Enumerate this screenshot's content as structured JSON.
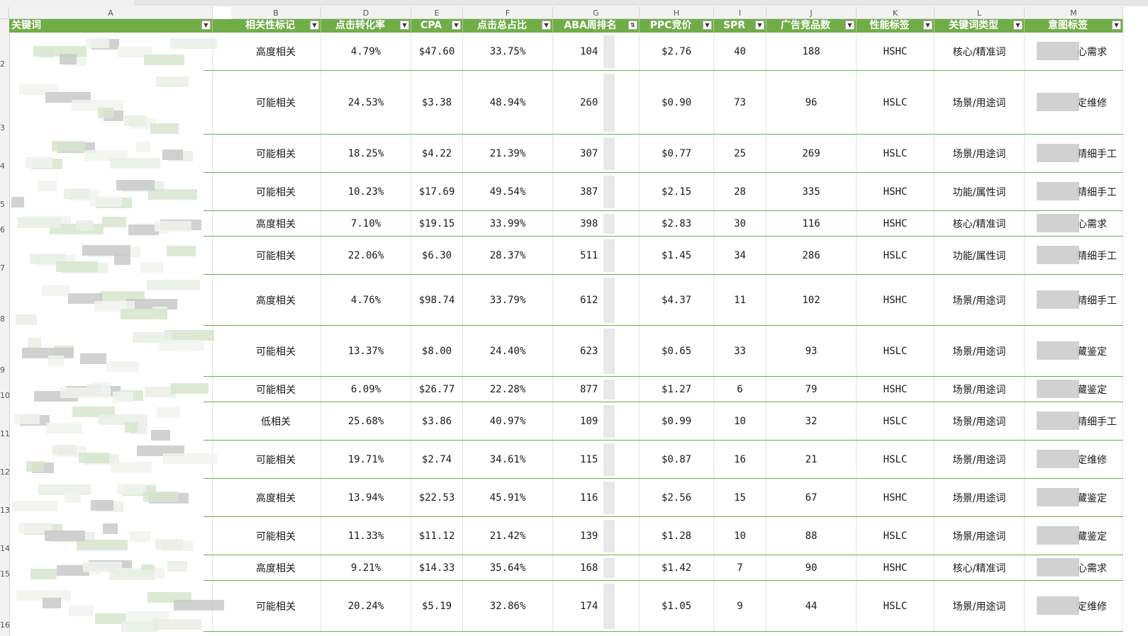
{
  "columns": [
    {
      "letter": "A",
      "header": "关键词"
    },
    {
      "letter": "B",
      "header": "相关性标记"
    },
    {
      "letter": "D",
      "header": "点击转化率"
    },
    {
      "letter": "E",
      "header": "CPA"
    },
    {
      "letter": "F",
      "header": "点击总占比"
    },
    {
      "letter": "G",
      "header": "ABA周排名"
    },
    {
      "letter": "H",
      "header": "PPC竞价"
    },
    {
      "letter": "I",
      "header": "SPR"
    },
    {
      "letter": "J",
      "header": "广告竞品数"
    },
    {
      "letter": "K",
      "header": "性能标签"
    },
    {
      "letter": "L",
      "header": "关键词类型"
    },
    {
      "letter": "M",
      "header": "意图标签"
    }
  ],
  "row_numbers": [
    "2",
    "3",
    "4",
    "5",
    "6",
    "7",
    "8",
    "9",
    "10",
    "11",
    "12",
    "13",
    "14",
    "15",
    "16"
  ],
  "rows": [
    {
      "relevance": "高度相关",
      "ctr": "4.79%",
      "cpa": "$47.60",
      "share": "33.75%",
      "aba": "104",
      "ppc": "$2.76",
      "spr": "40",
      "ads": "188",
      "perf": "HSHC",
      "type": "核心/精准词",
      "intent": "心需求"
    },
    {
      "relevance": "可能相关",
      "ctr": "24.53%",
      "cpa": "$3.38",
      "share": "48.94%",
      "aba": "260",
      "ppc": "$0.90",
      "spr": "73",
      "ads": "96",
      "perf": "HSLC",
      "type": "场景/用途词",
      "intent": "定维修"
    },
    {
      "relevance": "可能相关",
      "ctr": "18.25%",
      "cpa": "$4.22",
      "share": "21.39%",
      "aba": "307",
      "ppc": "$0.77",
      "spr": "25",
      "ads": "269",
      "perf": "HSLC",
      "type": "场景/用途词",
      "intent": "精细手工"
    },
    {
      "relevance": "可能相关",
      "ctr": "10.23%",
      "cpa": "$17.69",
      "share": "49.54%",
      "aba": "387",
      "ppc": "$2.15",
      "spr": "28",
      "ads": "335",
      "perf": "HSHC",
      "type": "功能/属性词",
      "intent": "精细手工"
    },
    {
      "relevance": "高度相关",
      "ctr": "7.10%",
      "cpa": "$19.15",
      "share": "33.99%",
      "aba": "398",
      "ppc": "$2.83",
      "spr": "30",
      "ads": "116",
      "perf": "HSHC",
      "type": "核心/精准词",
      "intent": "心需求"
    },
    {
      "relevance": "可能相关",
      "ctr": "22.06%",
      "cpa": "$6.30",
      "share": "28.37%",
      "aba": "511",
      "ppc": "$1.45",
      "spr": "34",
      "ads": "286",
      "perf": "HSLC",
      "type": "功能/属性词",
      "intent": "精细手工"
    },
    {
      "relevance": "高度相关",
      "ctr": "4.76%",
      "cpa": "$98.74",
      "share": "33.79%",
      "aba": "612",
      "ppc": "$4.37",
      "spr": "11",
      "ads": "102",
      "perf": "HSHC",
      "type": "场景/用途词",
      "intent": "精细手工"
    },
    {
      "relevance": "可能相关",
      "ctr": "13.37%",
      "cpa": "$8.00",
      "share": "24.40%",
      "aba": "623",
      "ppc": "$0.65",
      "spr": "33",
      "ads": "93",
      "perf": "HSLC",
      "type": "场景/用途词",
      "intent": "藏鉴定"
    },
    {
      "relevance": "可能相关",
      "ctr": "6.09%",
      "cpa": "$26.77",
      "share": "22.28%",
      "aba": "877",
      "ppc": "$1.27",
      "spr": "6",
      "ads": "79",
      "perf": "HSHC",
      "type": "场景/用途词",
      "intent": "藏鉴定"
    },
    {
      "relevance": "低相关",
      "ctr": "25.68%",
      "cpa": "$3.86",
      "share": "40.97%",
      "aba": "109",
      "ppc": "$0.99",
      "spr": "10",
      "ads": "32",
      "perf": "HSLC",
      "type": "场景/用途词",
      "intent": "精细手工"
    },
    {
      "relevance": "可能相关",
      "ctr": "19.71%",
      "cpa": "$2.74",
      "share": "34.61%",
      "aba": "115",
      "ppc": "$0.87",
      "spr": "16",
      "ads": "21",
      "perf": "HSLC",
      "type": "场景/用途词",
      "intent": "定维修"
    },
    {
      "relevance": "高度相关",
      "ctr": "13.94%",
      "cpa": "$22.53",
      "share": "45.91%",
      "aba": "116",
      "ppc": "$2.56",
      "spr": "15",
      "ads": "67",
      "perf": "HSHC",
      "type": "场景/用途词",
      "intent": "藏鉴定"
    },
    {
      "relevance": "可能相关",
      "ctr": "11.33%",
      "cpa": "$11.12",
      "share": "21.42%",
      "aba": "139",
      "ppc": "$1.28",
      "spr": "10",
      "ads": "88",
      "perf": "HSLC",
      "type": "场景/用途词",
      "intent": "藏鉴定"
    },
    {
      "relevance": "高度相关",
      "ctr": "9.21%",
      "cpa": "$14.33",
      "share": "35.64%",
      "aba": "168",
      "ppc": "$1.42",
      "spr": "7",
      "ads": "90",
      "perf": "HSHC",
      "type": "核心/精准词",
      "intent": "心需求"
    },
    {
      "relevance": "可能相关",
      "ctr": "20.24%",
      "cpa": "$5.19",
      "share": "32.86%",
      "aba": "174",
      "ppc": "$1.05",
      "spr": "9",
      "ads": "44",
      "perf": "HSLC",
      "type": "场景/用途词",
      "intent": "定维修"
    }
  ],
  "colors": {
    "header_bg": "#70ad47",
    "header_text": "#ffffff",
    "row_border": "#70ad47"
  }
}
